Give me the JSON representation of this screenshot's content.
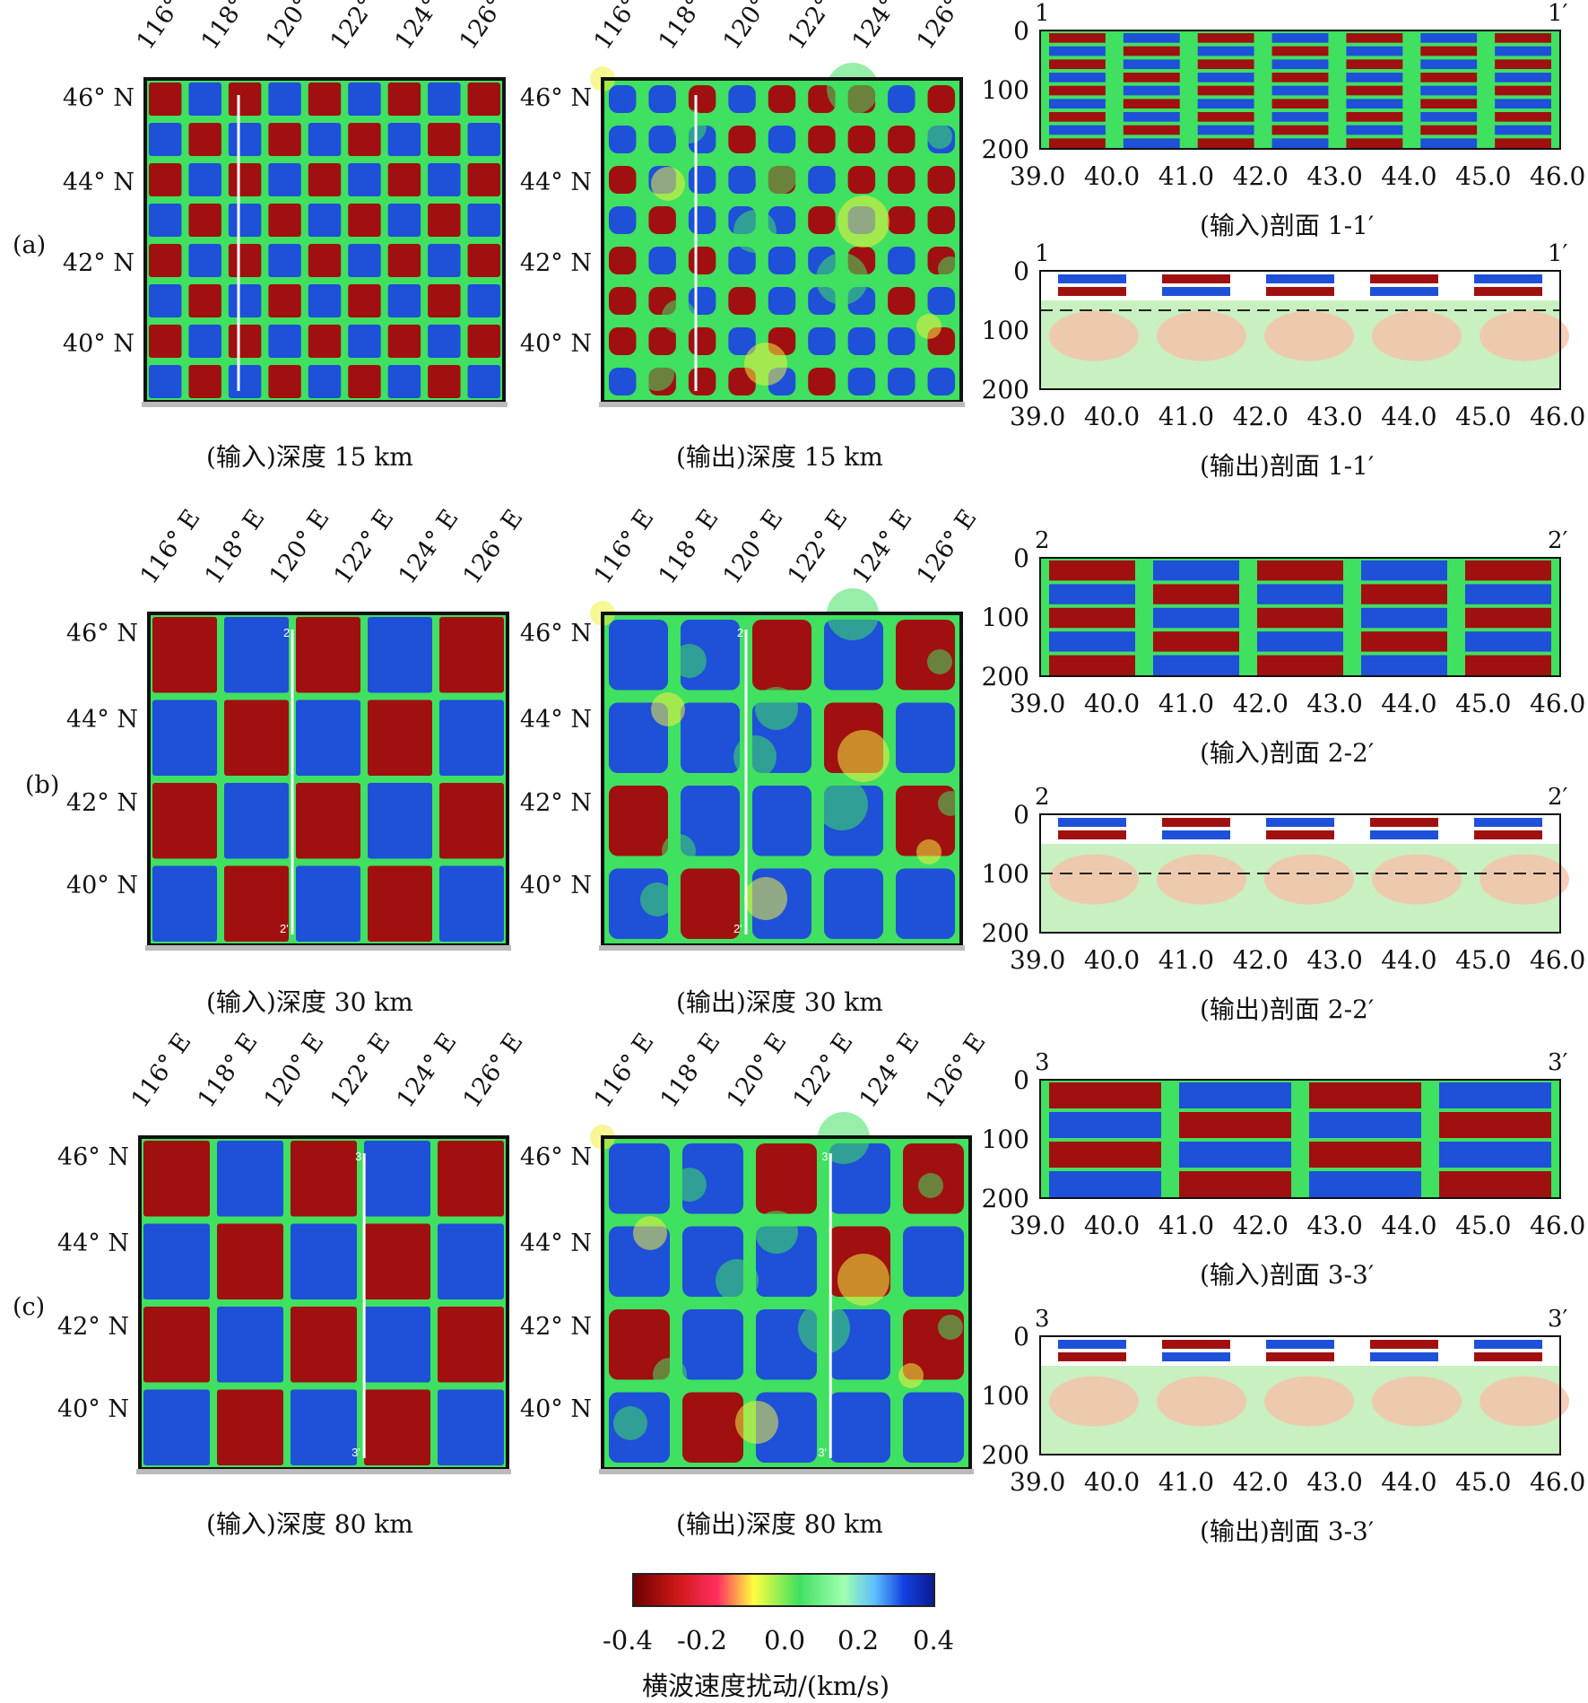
{
  "figure": {
    "row_labels": [
      "(a)",
      "(b)",
      "(c)"
    ],
    "lon_labels": [
      "116° E",
      "118° E",
      "120° E",
      "122° E",
      "124° E",
      "126° E"
    ],
    "lat_labels": [
      "46° N",
      "44° N",
      "42° N",
      "40° N"
    ],
    "map_titles": {
      "a_in": "(输入)深度 15 km",
      "a_out": "(输出)深度 15 km",
      "b_in": "(输入)深度 30 km",
      "b_out": "(输出)深度 30 km",
      "c_in": "(输入)深度 80 km",
      "c_out": "(输出)深度 80 km"
    },
    "profile_marks": {
      "b_start": "2",
      "b_end": "2'",
      "c_start": "3",
      "c_end": "3'"
    },
    "sections": [
      {
        "title": "(输入)剖面 1-1′",
        "start": "1",
        "end": "1′"
      },
      {
        "title": "(输出)剖面 1-1′",
        "start": "1",
        "end": "1′"
      },
      {
        "title": "(输入)剖面 2-2′",
        "start": "2",
        "end": "2′"
      },
      {
        "title": "(输出)剖面 2-2′",
        "start": "2",
        "end": "2′"
      },
      {
        "title": "(输入)剖面 3-3′",
        "start": "3",
        "end": "3′"
      },
      {
        "title": "(输出)剖面 3-3′",
        "start": "3",
        "end": "3′"
      }
    ],
    "section_yticks": [
      "0",
      "100",
      "200"
    ],
    "section_xticks": [
      "39.0",
      "40.0",
      "41.0",
      "42.0",
      "43.0",
      "44.0",
      "45.0",
      "46.0"
    ],
    "colorbar": {
      "ticks": [
        "-0.4",
        "-0.2",
        "0.0",
        "0.2",
        "0.4"
      ],
      "label": "横波速度扰动/(km/s)",
      "colors": [
        "#7a0000",
        "#e02020",
        "#ffff40",
        "#40e040",
        "#a0ffff",
        "#1040e0",
        "#0a1a90"
      ]
    },
    "palette": {
      "red": "#a01010",
      "blue": "#1e50d8",
      "green": "#40e060",
      "yellow": "#f0f040",
      "pale_red": "#f6c0a8",
      "pale_green": "#c8f0c0"
    }
  }
}
